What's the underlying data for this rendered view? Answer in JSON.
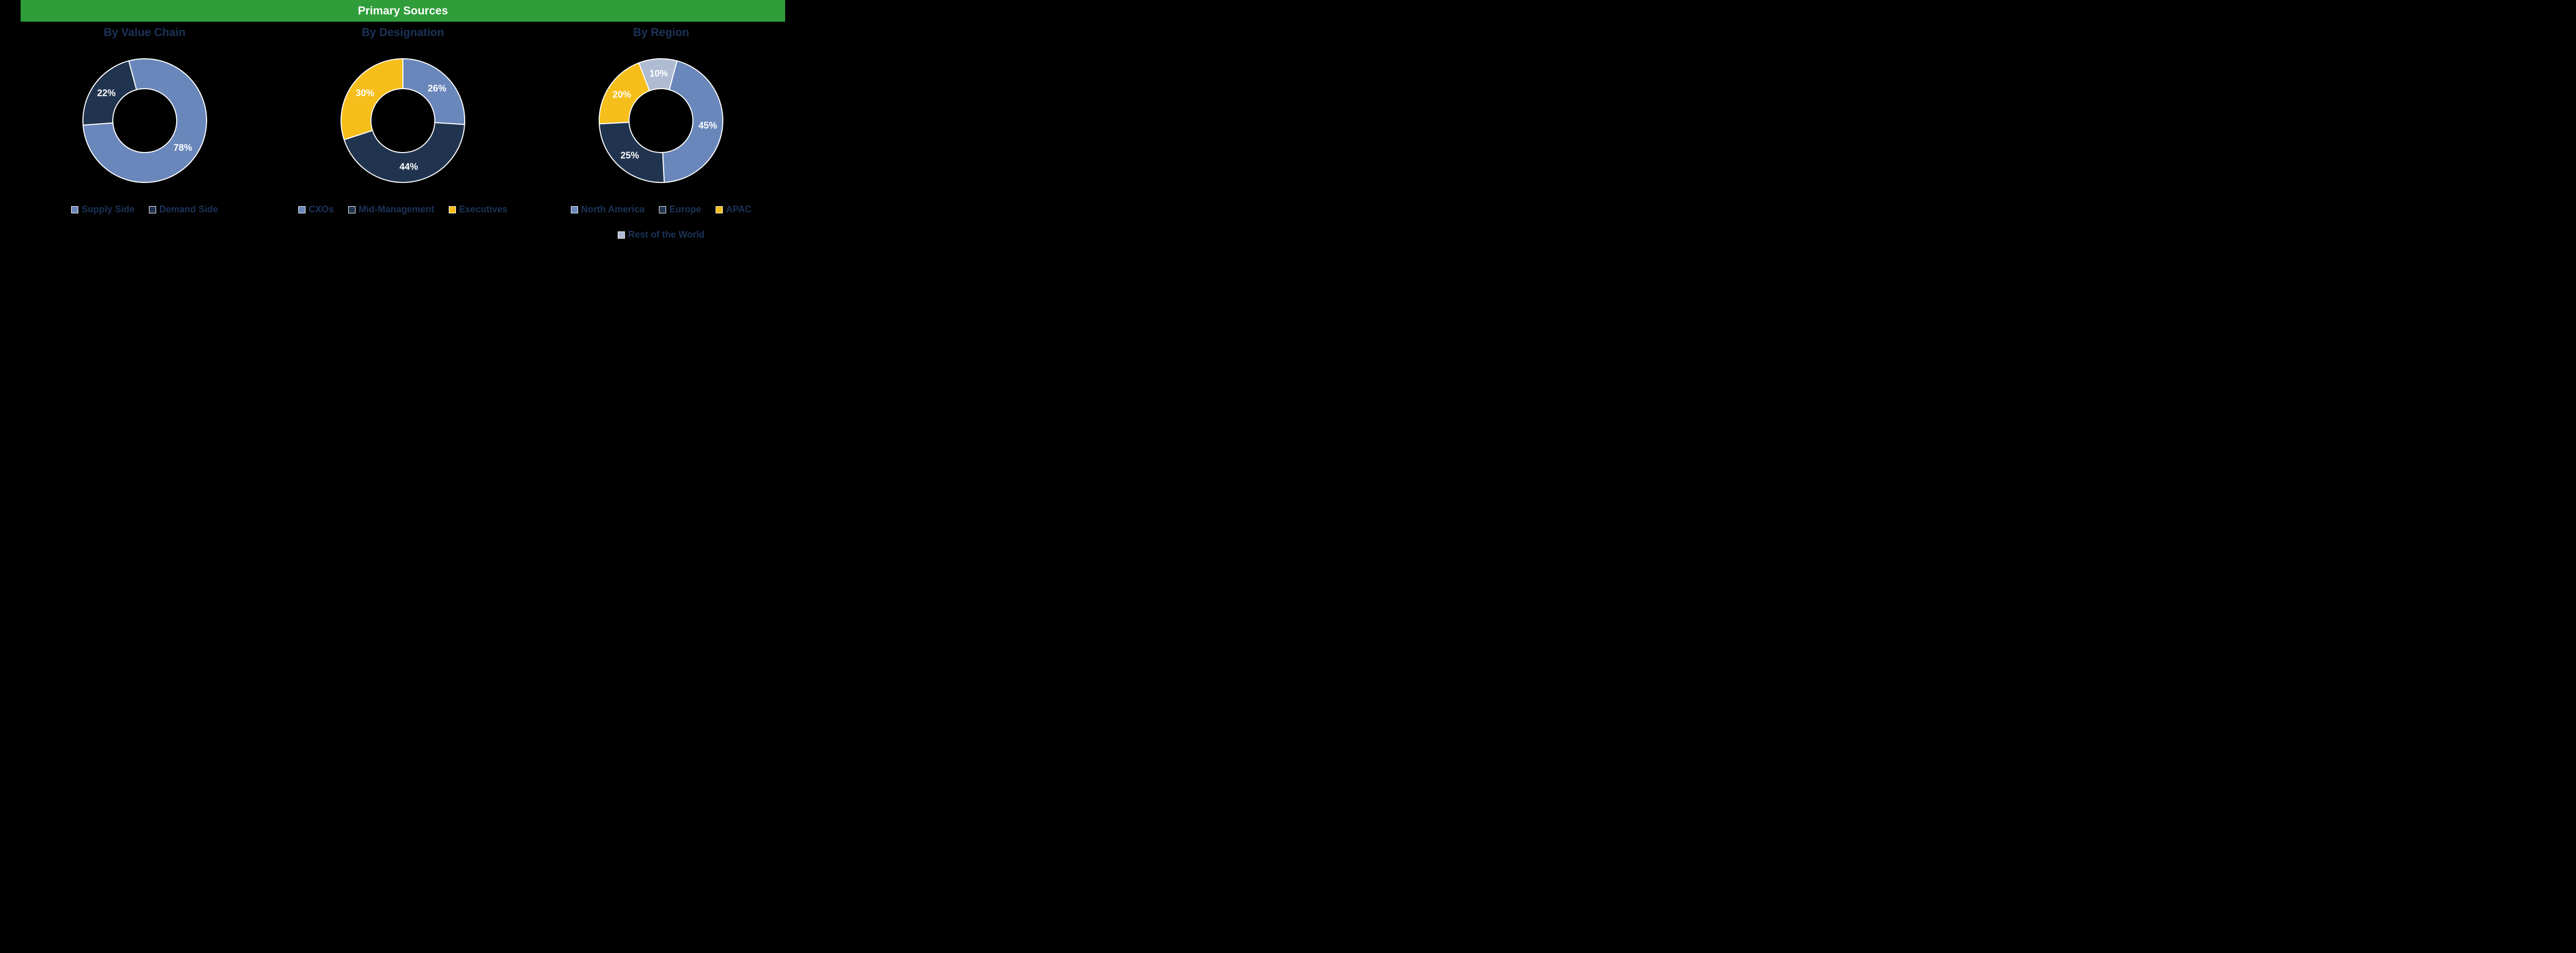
{
  "header": {
    "title": "Primary Sources",
    "bg_color": "#2e9d3a",
    "text_color": "#ffffff"
  },
  "title_color": "#1b3358",
  "legend_text_color": "#1b3358",
  "donut": {
    "outer_r": 120,
    "inner_r": 62,
    "stroke": "#ffffff",
    "stroke_width": 2
  },
  "charts": [
    {
      "title": "By Value Chain",
      "start_angle": -15,
      "slices": [
        {
          "label": "Supply Side",
          "value": 78,
          "color": "#6a87bb",
          "text": "78%"
        },
        {
          "label": "Demand Side",
          "value": 22,
          "color": "#21344f",
          "text": "22%"
        }
      ]
    },
    {
      "title": "By Designation",
      "start_angle": 0,
      "slices": [
        {
          "label": "CXOs",
          "value": 26,
          "color": "#6a87bb",
          "text": "26%"
        },
        {
          "label": "Mid-Management",
          "value": 44,
          "color": "#21344f",
          "text": "44%"
        },
        {
          "label": "Executives",
          "value": 30,
          "color": "#f6be1a",
          "text": "30%"
        }
      ]
    },
    {
      "title": "By Region",
      "start_angle": 15,
      "slices": [
        {
          "label": "North America",
          "value": 45,
          "color": "#6a87bb",
          "text": "45%"
        },
        {
          "label": "Europe",
          "value": 25,
          "color": "#21344f",
          "text": "25%"
        },
        {
          "label": "APAC",
          "value": 20,
          "color": "#f6be1a",
          "text": "20%"
        },
        {
          "label": "Rest of the World",
          "value": 10,
          "color": "#aebbd3",
          "text": "10%"
        }
      ]
    }
  ]
}
